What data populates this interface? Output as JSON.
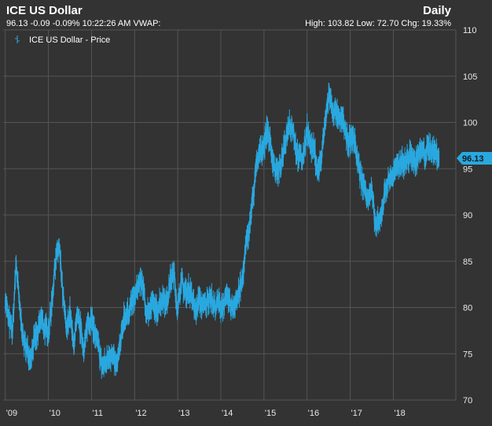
{
  "header": {
    "title": "ICE US Dollar",
    "frequency": "Daily",
    "quote_line": "96.13 -0.09 -0.09% 10:22:26 AM VWAP:",
    "range_line": "High: 103.82 Low: 72.70 Chg: 19.33%"
  },
  "colors": {
    "background": "#333333",
    "grid": "#555555",
    "series": "#29a8e0",
    "text": "#ffffff"
  },
  "chart_data": {
    "type": "line",
    "legend": {
      "label": "ICE US Dollar - Price",
      "position": "top-left"
    },
    "grid": true,
    "ylim": [
      70,
      110
    ],
    "y_axis_side": "right",
    "y_ticks": [
      "110",
      "105",
      "100",
      "95",
      "90",
      "85",
      "80",
      "75",
      "70"
    ],
    "x_ticks": [
      "'09",
      "'10",
      "'11",
      "'12",
      "'13",
      "'14",
      "'15",
      "'16",
      "'17",
      "'18"
    ],
    "x_tick_values": [
      2009,
      2010,
      2011,
      2012,
      2013,
      2014,
      2015,
      2016,
      2017,
      2018
    ],
    "last_value": "96.13",
    "series": [
      {
        "name": "ICE US Dollar - Price",
        "x": [
          2009.0,
          2009.08,
          2009.17,
          2009.25,
          2009.33,
          2009.42,
          2009.5,
          2009.58,
          2009.67,
          2009.75,
          2009.83,
          2009.92,
          2010.0,
          2010.08,
          2010.17,
          2010.25,
          2010.33,
          2010.42,
          2010.5,
          2010.58,
          2010.67,
          2010.75,
          2010.83,
          2010.92,
          2011.0,
          2011.08,
          2011.17,
          2011.25,
          2011.33,
          2011.42,
          2011.5,
          2011.58,
          2011.67,
          2011.75,
          2011.83,
          2011.92,
          2012.0,
          2012.08,
          2012.17,
          2012.25,
          2012.33,
          2012.42,
          2012.5,
          2012.58,
          2012.67,
          2012.75,
          2012.83,
          2012.92,
          2013.0,
          2013.08,
          2013.17,
          2013.25,
          2013.33,
          2013.42,
          2013.5,
          2013.58,
          2013.67,
          2013.75,
          2013.83,
          2013.92,
          2014.0,
          2014.08,
          2014.17,
          2014.25,
          2014.33,
          2014.42,
          2014.5,
          2014.58,
          2014.67,
          2014.75,
          2014.83,
          2014.92,
          2015.0,
          2015.08,
          2015.17,
          2015.25,
          2015.33,
          2015.42,
          2015.5,
          2015.58,
          2015.67,
          2015.75,
          2015.83,
          2015.92,
          2016.0,
          2016.08,
          2016.17,
          2016.25,
          2016.33,
          2016.42,
          2016.5,
          2016.58,
          2016.67,
          2016.75,
          2016.83,
          2016.92,
          2017.0,
          2017.08,
          2017.17,
          2017.25,
          2017.33,
          2017.42,
          2017.5,
          2017.58,
          2017.67,
          2017.75,
          2017.83,
          2017.92,
          2018.0,
          2018.08,
          2018.17,
          2018.25,
          2018.33,
          2018.42,
          2018.5,
          2018.58,
          2018.67,
          2018.75,
          2018.83,
          2018.92,
          2019.0,
          2019.06
        ],
        "values": [
          81.0,
          78.5,
          77.5,
          85.0,
          80.0,
          76.5,
          75.5,
          74.5,
          76.5,
          77.0,
          79.0,
          77.5,
          77.5,
          80.5,
          85.5,
          86.5,
          81.5,
          77.5,
          79.5,
          76.0,
          79.0,
          77.5,
          75.5,
          78.5,
          78.5,
          77.0,
          75.5,
          73.5,
          74.0,
          75.0,
          74.5,
          73.5,
          76.0,
          79.0,
          79.0,
          80.5,
          81.0,
          82.5,
          83.0,
          80.0,
          79.5,
          80.5,
          79.5,
          80.5,
          81.0,
          80.5,
          83.0,
          83.5,
          79.5,
          83.0,
          81.5,
          82.0,
          81.0,
          79.5,
          81.0,
          80.0,
          80.5,
          81.5,
          80.0,
          80.5,
          80.0,
          80.5,
          81.0,
          80.0,
          80.5,
          81.5,
          83.0,
          86.5,
          89.0,
          92.0,
          95.5,
          97.0,
          97.5,
          99.5,
          97.0,
          95.0,
          94.5,
          96.0,
          98.0,
          100.0,
          99.5,
          97.0,
          96.0,
          96.5,
          99.5,
          97.5,
          97.0,
          94.5,
          96.0,
          100.0,
          103.0,
          101.5,
          101.0,
          100.0,
          100.5,
          98.0,
          98.0,
          98.5,
          96.0,
          94.0,
          93.0,
          92.0,
          92.5,
          89.0,
          89.0,
          91.0,
          93.0,
          94.0,
          94.5,
          95.0,
          96.0,
          95.5,
          96.0,
          96.5,
          95.5,
          96.5,
          97.0,
          96.5,
          97.5,
          97.0,
          96.5,
          96.13
        ]
      }
    ]
  }
}
